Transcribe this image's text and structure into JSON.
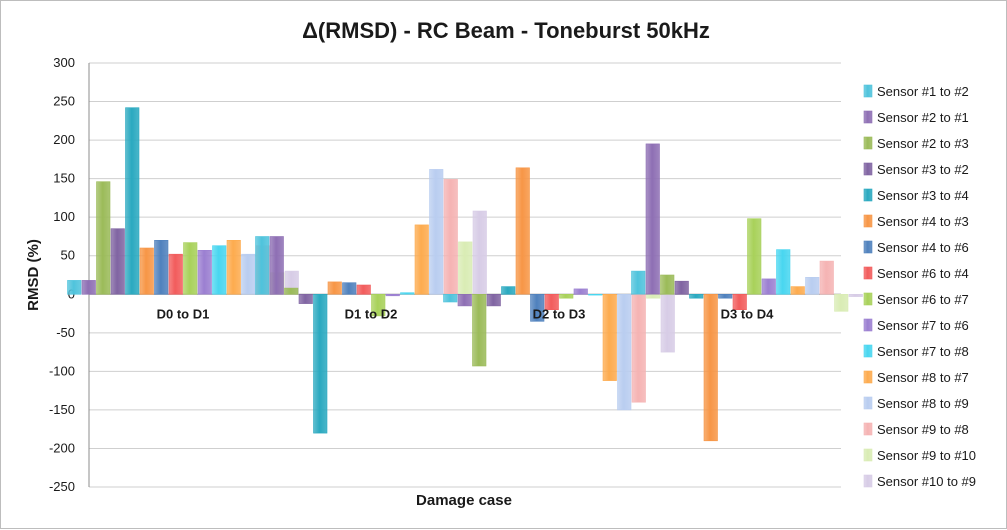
{
  "chart_data": {
    "type": "bar",
    "title": "Δ(RMSD) - RC Beam - Toneburst 50kHz",
    "xlabel": "Damage case",
    "ylabel": "RMSD (%)",
    "ylim": [
      -250,
      300
    ],
    "yticks": [
      300,
      250,
      200,
      150,
      100,
      50,
      0,
      -50,
      -100,
      -150,
      -200,
      -250
    ],
    "grid": true,
    "legend_position": "right",
    "categories": [
      "D0 to D1",
      "D1 to D2",
      "D2 to D3",
      "D3 to D4"
    ],
    "series": [
      {
        "name": "Sensor #1 to #2",
        "color": "#4fc3dc",
        "values": [
          18,
          75,
          -10,
          30
        ]
      },
      {
        "name": "Sensor #2 to #1",
        "color": "#8e6fb4",
        "values": [
          18,
          75,
          -15,
          195
        ]
      },
      {
        "name": "Sensor #2 to #3",
        "color": "#9bbb59",
        "values": [
          146,
          8,
          -93,
          25
        ]
      },
      {
        "name": "Sensor #3 to #2",
        "color": "#8064a2",
        "values": [
          85,
          -12,
          -15,
          17
        ]
      },
      {
        "name": "Sensor #3 to #4",
        "color": "#2aa9c0",
        "values": [
          242,
          -180,
          10,
          -5
        ]
      },
      {
        "name": "Sensor #4 to #3",
        "color": "#f79646",
        "values": [
          60,
          16,
          164,
          -190
        ]
      },
      {
        "name": "Sensor #4 to #6",
        "color": "#4f81bd",
        "values": [
          70,
          15,
          -35,
          -5
        ]
      },
      {
        "name": "Sensor #6 to #4",
        "color": "#f25c5c",
        "values": [
          52,
          12,
          -20,
          -20
        ]
      },
      {
        "name": "Sensor #6 to #7",
        "color": "#a8d15a",
        "values": [
          67,
          -28,
          -5,
          98
        ]
      },
      {
        "name": "Sensor #7 to #6",
        "color": "#9b7fd1",
        "values": [
          57,
          -2,
          7,
          20
        ]
      },
      {
        "name": "Sensor #7 to #8",
        "color": "#48d6f0",
        "values": [
          63,
          2,
          0,
          58
        ]
      },
      {
        "name": "Sensor #8 to #7",
        "color": "#fdab4e",
        "values": [
          70,
          90,
          -112,
          10
        ]
      },
      {
        "name": "Sensor #8 to #9",
        "color": "#b9cdf0",
        "values": [
          52,
          162,
          -150,
          22
        ]
      },
      {
        "name": "Sensor #9 to #8",
        "color": "#f5b3b3",
        "values": [
          63,
          149,
          -140,
          43
        ]
      },
      {
        "name": "Sensor #9 to #10",
        "color": "#d9ecb4",
        "values": [
          28,
          68,
          -5,
          -22
        ]
      },
      {
        "name": "Sensor #10 to #9",
        "color": "#d7cce6",
        "values": [
          30,
          108,
          -75,
          -3
        ]
      }
    ]
  }
}
